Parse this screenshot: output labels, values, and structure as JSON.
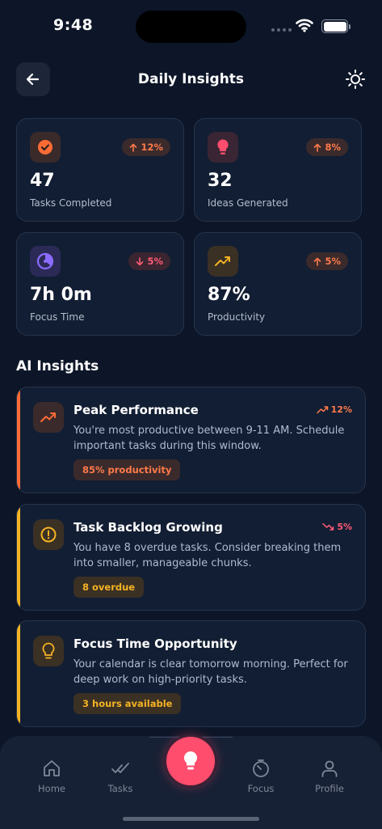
{
  "status": {
    "time": "9:48"
  },
  "header": {
    "title": "Daily Insights"
  },
  "stats": [
    {
      "value": "47",
      "label": "Tasks Completed",
      "trend": "12%",
      "direction": "up"
    },
    {
      "value": "32",
      "label": "Ideas Generated",
      "trend": "8%",
      "direction": "up"
    },
    {
      "value": "7h 0m",
      "label": "Focus Time",
      "trend": "5%",
      "direction": "down"
    },
    {
      "value": "87%",
      "label": "Productivity",
      "trend": "5%",
      "direction": "up"
    }
  ],
  "section": {
    "title": "AI Insights"
  },
  "insights": [
    {
      "title": "Peak Performance",
      "trend": "12%",
      "description": "You're most productive between 9-11 AM. Schedule important tasks during this window.",
      "tag": "85% productivity",
      "accent": "#ff6b35"
    },
    {
      "title": "Task Backlog Growing",
      "trend": "5%",
      "description": "You have 8 overdue tasks. Consider breaking them into smaller, manageable chunks.",
      "tag": "8 overdue",
      "accent": "#f5b324"
    },
    {
      "title": "Focus Time Opportunity",
      "trend": "",
      "description": "Your calendar is clear tomorrow morning. Perfect for deep work on high-priority tasks.",
      "tag": "3 hours available",
      "accent": "#f5b324"
    }
  ],
  "nav": {
    "home": "Home",
    "tasks": "Tasks",
    "focus": "Focus",
    "profile": "Profile"
  },
  "colors": {
    "background": "#0d1628",
    "card": "#121e33",
    "orange": "#ff6b35",
    "pink": "#ff4d6d",
    "yellow": "#f5b324",
    "purple": "#8b6cff"
  },
  "icons": {
    "stats": [
      "check-circle-icon",
      "lightbulb-icon",
      "timer-icon",
      "trending-up-icon"
    ],
    "insights": [
      "trending-up-icon",
      "alert-circle-icon",
      "lightbulb-icon"
    ],
    "nav": [
      "home-icon",
      "tasks-icon",
      "lightbulb-icon",
      "focus-icon",
      "profile-icon"
    ]
  }
}
